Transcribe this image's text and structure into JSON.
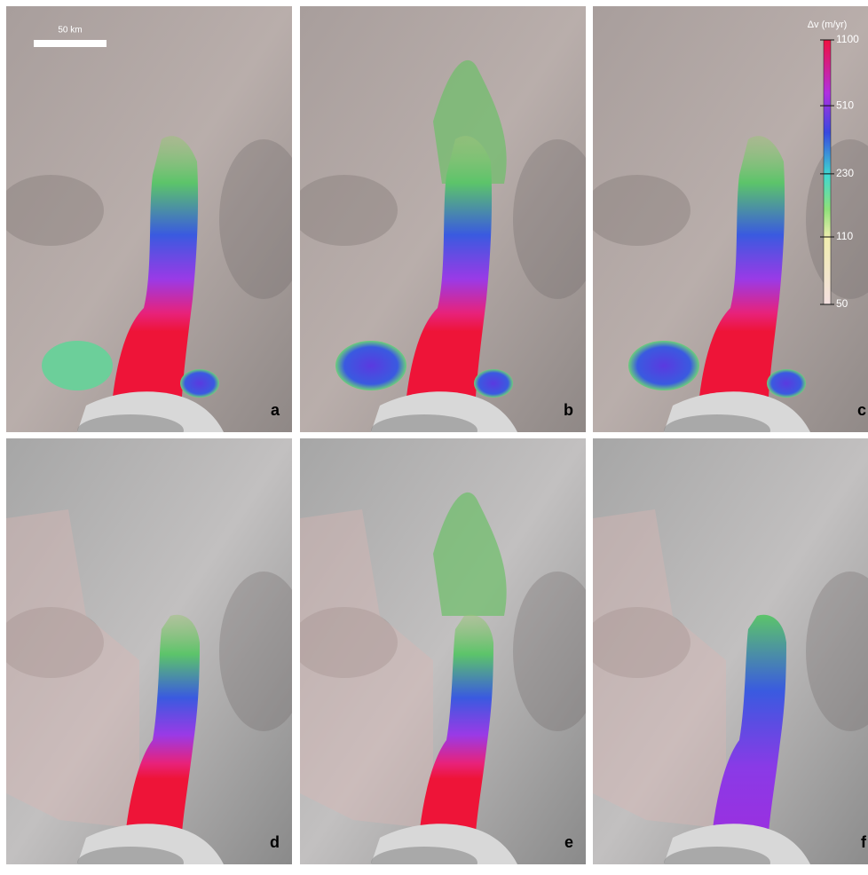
{
  "scale_bar": {
    "label": "50 km"
  },
  "colorbar": {
    "title": "Δv (m/yr)",
    "lim": [
      50,
      1100
    ],
    "ticks": [
      1100,
      510,
      230,
      110,
      50
    ],
    "log_scale": true
  },
  "panels": [
    {
      "label": "a"
    },
    {
      "label": "b"
    },
    {
      "label": "c"
    },
    {
      "label": "d"
    },
    {
      "label": "e"
    },
    {
      "label": "f"
    }
  ]
}
